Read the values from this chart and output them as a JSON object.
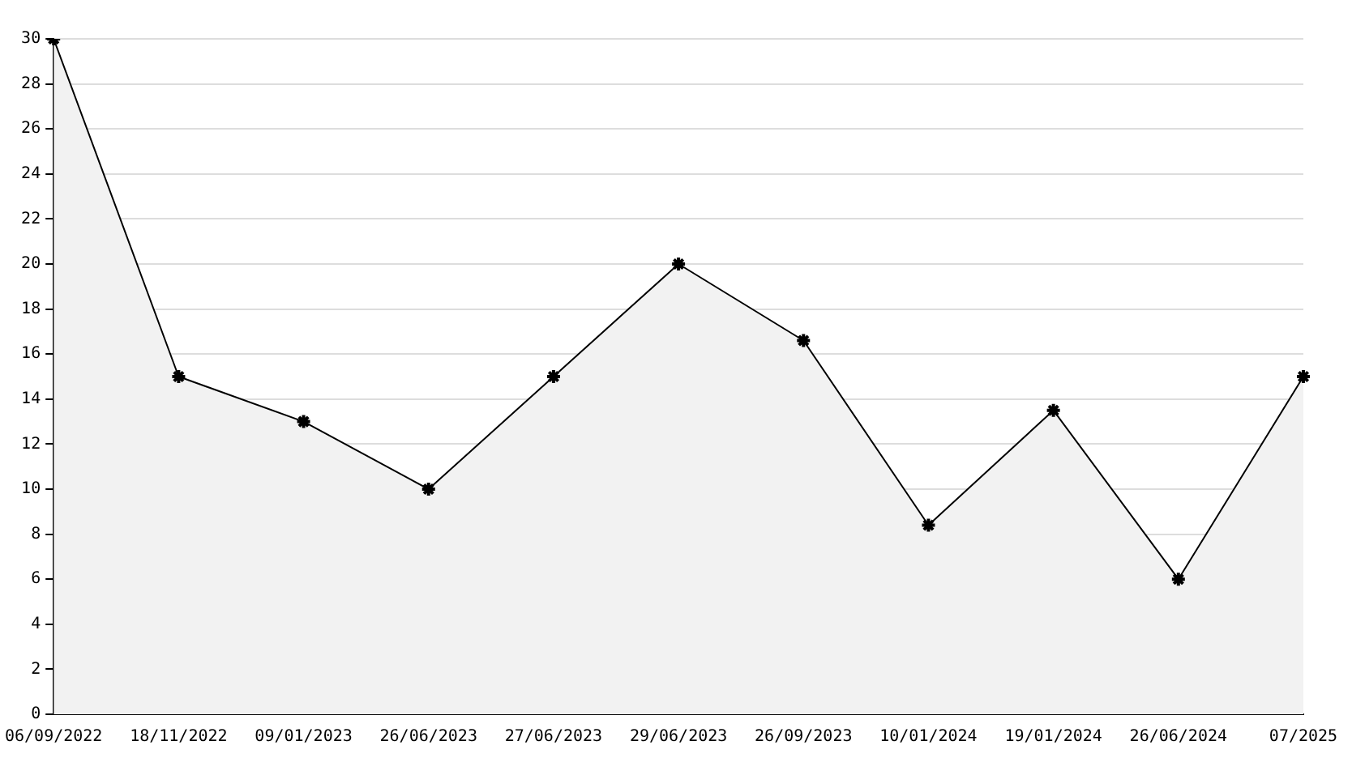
{
  "chart_data": {
    "type": "area",
    "categories": [
      "06/09/2022",
      "18/11/2022",
      "09/01/2023",
      "26/06/2023",
      "27/06/2023",
      "29/06/2023",
      "26/09/2023",
      "10/01/2024",
      "19/01/2024",
      "26/06/2024",
      "07/2025"
    ],
    "series": [
      {
        "color": "#000000",
        "values": [
          30,
          15,
          13,
          10,
          15,
          20,
          16.6,
          8.4,
          13.5,
          6,
          15
        ]
      }
    ],
    "ylim": [
      0,
      30
    ],
    "yticks": [
      0,
      2,
      4,
      6,
      8,
      10,
      12,
      14,
      16,
      18,
      20,
      22,
      24,
      26,
      28,
      30
    ],
    "grid": "y",
    "marker": "cross",
    "line_style": "solid"
  }
}
